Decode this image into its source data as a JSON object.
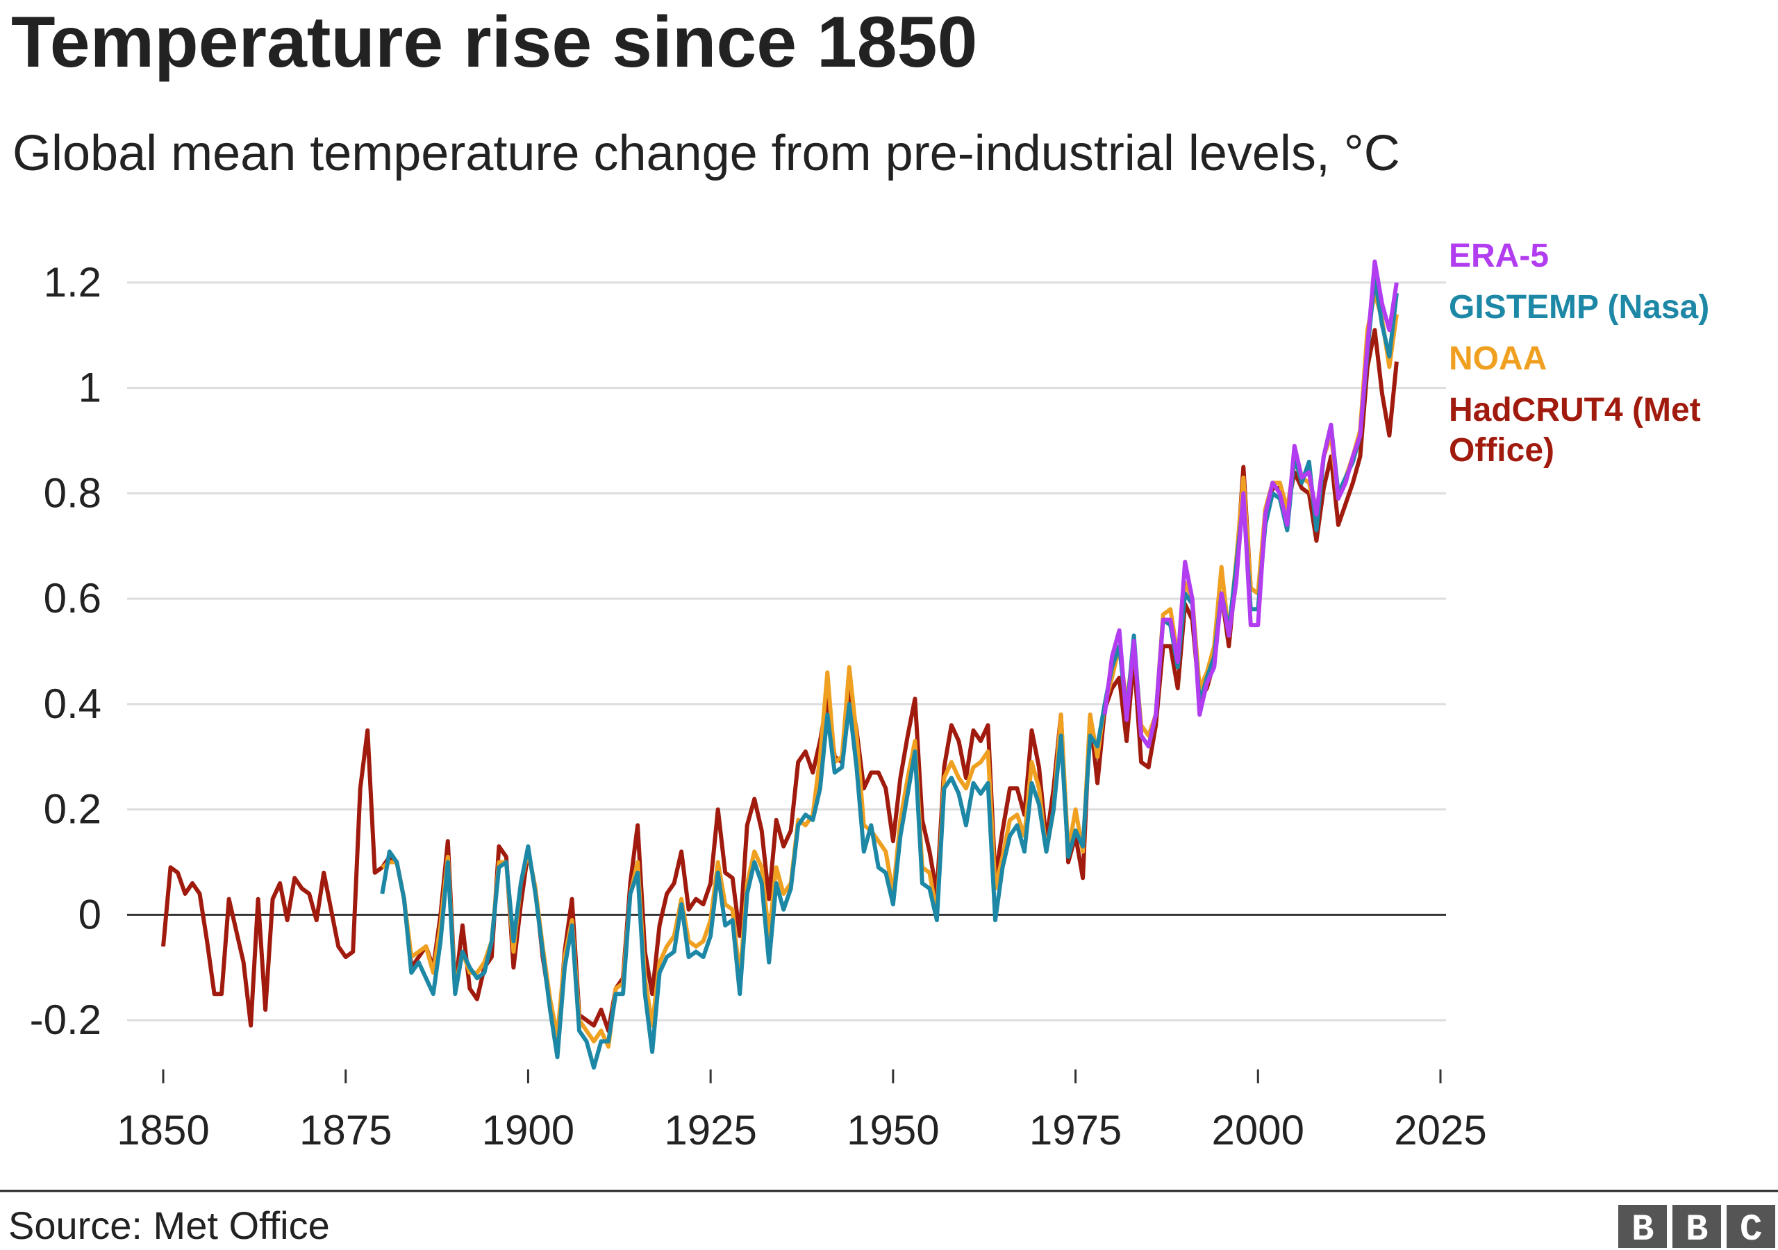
{
  "chart_data": {
    "type": "line",
    "title": "Temperature rise since 1850",
    "subtitle": "Global mean temperature change from pre-industrial levels, °C",
    "source": "Source: Met Office",
    "logo": "BBC",
    "legend": "right",
    "grid": true,
    "xlim": [
      1850,
      2025
    ],
    "xticks": [
      1850,
      1875,
      1900,
      1925,
      1950,
      1975,
      2000,
      2025
    ],
    "ylim": [
      -0.3,
      1.25
    ],
    "yticks": [
      -0.2,
      0,
      0.2,
      0.4,
      0.6,
      0.8,
      1,
      1.2
    ],
    "x": [
      1850,
      1851,
      1852,
      1853,
      1854,
      1855,
      1856,
      1857,
      1858,
      1859,
      1860,
      1861,
      1862,
      1863,
      1864,
      1865,
      1866,
      1867,
      1868,
      1869,
      1870,
      1871,
      1872,
      1873,
      1874,
      1875,
      1876,
      1877,
      1878,
      1879,
      1880,
      1881,
      1882,
      1883,
      1884,
      1885,
      1886,
      1887,
      1888,
      1889,
      1890,
      1891,
      1892,
      1893,
      1894,
      1895,
      1896,
      1897,
      1898,
      1899,
      1900,
      1901,
      1902,
      1903,
      1904,
      1905,
      1906,
      1907,
      1908,
      1909,
      1910,
      1911,
      1912,
      1913,
      1914,
      1915,
      1916,
      1917,
      1918,
      1919,
      1920,
      1921,
      1922,
      1923,
      1924,
      1925,
      1926,
      1927,
      1928,
      1929,
      1930,
      1931,
      1932,
      1933,
      1934,
      1935,
      1936,
      1937,
      1938,
      1939,
      1940,
      1941,
      1942,
      1943,
      1944,
      1945,
      1946,
      1947,
      1948,
      1949,
      1950,
      1951,
      1952,
      1953,
      1954,
      1955,
      1956,
      1957,
      1958,
      1959,
      1960,
      1961,
      1962,
      1963,
      1964,
      1965,
      1966,
      1967,
      1968,
      1969,
      1970,
      1971,
      1972,
      1973,
      1974,
      1975,
      1976,
      1977,
      1978,
      1979,
      1980,
      1981,
      1982,
      1983,
      1984,
      1985,
      1986,
      1987,
      1988,
      1989,
      1990,
      1991,
      1992,
      1993,
      1994,
      1995,
      1996,
      1997,
      1998,
      1999,
      2000,
      2001,
      2002,
      2003,
      2004,
      2005,
      2006,
      2007,
      2008,
      2009,
      2010,
      2011,
      2012,
      2013,
      2014,
      2015,
      2016,
      2017,
      2018,
      2019
    ],
    "series": [
      {
        "name": "ERA-5",
        "color": "#b23cf0",
        "values": [
          null,
          null,
          null,
          null,
          null,
          null,
          null,
          null,
          null,
          null,
          null,
          null,
          null,
          null,
          null,
          null,
          null,
          null,
          null,
          null,
          null,
          null,
          null,
          null,
          null,
          null,
          null,
          null,
          null,
          null,
          null,
          null,
          null,
          null,
          null,
          null,
          null,
          null,
          null,
          null,
          null,
          null,
          null,
          null,
          null,
          null,
          null,
          null,
          null,
          null,
          null,
          null,
          null,
          null,
          null,
          null,
          null,
          null,
          null,
          null,
          null,
          null,
          null,
          null,
          null,
          null,
          null,
          null,
          null,
          null,
          null,
          null,
          null,
          null,
          null,
          null,
          null,
          null,
          null,
          null,
          null,
          null,
          null,
          null,
          null,
          null,
          null,
          null,
          null,
          null,
          null,
          null,
          null,
          null,
          null,
          null,
          null,
          null,
          null,
          null,
          null,
          null,
          null,
          null,
          null,
          null,
          null,
          null,
          null,
          null,
          null,
          null,
          null,
          null,
          null,
          null,
          null,
          null,
          null,
          null,
          null,
          null,
          null,
          null,
          null,
          null,
          null,
          null,
          null,
          0.38,
          0.49,
          0.54,
          0.37,
          0.52,
          0.34,
          0.32,
          0.38,
          0.56,
          0.56,
          0.48,
          0.67,
          0.6,
          0.38,
          0.44,
          0.47,
          0.61,
          0.53,
          0.63,
          0.8,
          0.55,
          0.55,
          0.76,
          0.82,
          0.8,
          0.74,
          0.89,
          0.83,
          0.84,
          0.76,
          0.87,
          0.93,
          0.79,
          0.82,
          0.87,
          0.91,
          1.08,
          1.24,
          1.16,
          1.11,
          1.2
        ]
      },
      {
        "name": "GISTEMP (Nasa)",
        "color": "#1d87a6",
        "values": [
          null,
          null,
          null,
          null,
          null,
          null,
          null,
          null,
          null,
          null,
          null,
          null,
          null,
          null,
          null,
          null,
          null,
          null,
          null,
          null,
          null,
          null,
          null,
          null,
          null,
          null,
          null,
          null,
          null,
          null,
          0.04,
          0.12,
          0.1,
          0.03,
          -0.11,
          -0.09,
          -0.12,
          -0.15,
          -0.05,
          0.1,
          -0.15,
          -0.07,
          -0.1,
          -0.12,
          -0.11,
          -0.05,
          0.09,
          0.1,
          -0.05,
          0.06,
          0.13,
          0.04,
          -0.07,
          -0.18,
          -0.27,
          -0.1,
          -0.02,
          -0.22,
          -0.24,
          -0.29,
          -0.24,
          -0.24,
          -0.15,
          -0.15,
          0.04,
          0.08,
          -0.15,
          -0.26,
          -0.11,
          -0.08,
          -0.07,
          0.02,
          -0.08,
          -0.07,
          -0.08,
          -0.04,
          0.08,
          -0.02,
          -0.01,
          -0.15,
          0.04,
          0.1,
          0.06,
          -0.09,
          0.06,
          0.01,
          0.05,
          0.17,
          0.19,
          0.18,
          0.24,
          0.38,
          0.27,
          0.28,
          0.4,
          0.28,
          0.12,
          0.17,
          0.09,
          0.08,
          0.02,
          0.15,
          0.23,
          0.31,
          0.06,
          0.05,
          -0.01,
          0.24,
          0.26,
          0.23,
          0.17,
          0.25,
          0.23,
          0.25,
          -0.01,
          0.09,
          0.15,
          0.17,
          0.12,
          0.25,
          0.21,
          0.12,
          0.2,
          0.34,
          0.11,
          0.16,
          0.13,
          0.34,
          0.32,
          0.4,
          0.47,
          0.51,
          0.38,
          0.53,
          0.34,
          0.32,
          0.38,
          0.56,
          0.55,
          0.47,
          0.61,
          0.59,
          0.4,
          0.45,
          0.49,
          0.61,
          0.54,
          0.66,
          0.79,
          0.58,
          0.58,
          0.74,
          0.8,
          0.79,
          0.73,
          0.87,
          0.82,
          0.86,
          0.73,
          0.87,
          0.93,
          0.8,
          0.83,
          0.86,
          0.91,
          1.07,
          1.21,
          1.12,
          1.06,
          1.18
        ]
      },
      {
        "name": "NOAA",
        "color": "#f0a020",
        "values": [
          null,
          null,
          null,
          null,
          null,
          null,
          null,
          null,
          null,
          null,
          null,
          null,
          null,
          null,
          null,
          null,
          null,
          null,
          null,
          null,
          null,
          null,
          null,
          null,
          null,
          null,
          null,
          null,
          null,
          null,
          0.09,
          0.1,
          0.1,
          0.03,
          -0.08,
          -0.07,
          -0.06,
          -0.11,
          -0.02,
          0.11,
          -0.14,
          -0.07,
          -0.11,
          -0.11,
          -0.09,
          -0.05,
          0.1,
          0.1,
          -0.07,
          0.06,
          0.12,
          0.05,
          -0.06,
          -0.16,
          -0.23,
          -0.08,
          -0.01,
          -0.2,
          -0.22,
          -0.24,
          -0.22,
          -0.25,
          -0.14,
          -0.13,
          0.04,
          0.1,
          -0.12,
          -0.21,
          -0.09,
          -0.06,
          -0.04,
          0.03,
          -0.05,
          -0.06,
          -0.05,
          -0.01,
          0.1,
          0.02,
          0.01,
          -0.12,
          0.06,
          0.12,
          0.09,
          -0.04,
          0.09,
          0.04,
          0.06,
          0.18,
          0.17,
          0.19,
          0.3,
          0.46,
          0.29,
          0.3,
          0.47,
          0.34,
          0.17,
          0.16,
          0.14,
          0.12,
          0.04,
          0.18,
          0.26,
          0.33,
          0.09,
          0.08,
          0,
          0.26,
          0.29,
          0.26,
          0.24,
          0.28,
          0.29,
          0.31,
          0.05,
          0.11,
          0.18,
          0.19,
          0.15,
          0.29,
          0.24,
          0.12,
          0.2,
          0.38,
          0.12,
          0.2,
          0.12,
          0.38,
          0.3,
          0.4,
          0.45,
          0.51,
          0.4,
          0.51,
          0.36,
          0.34,
          0.38,
          0.57,
          0.58,
          0.49,
          0.63,
          0.6,
          0.43,
          0.46,
          0.51,
          0.66,
          0.53,
          0.67,
          0.83,
          0.62,
          0.61,
          0.77,
          0.82,
          0.82,
          0.77,
          0.86,
          0.83,
          0.82,
          0.76,
          0.87,
          0.91,
          0.79,
          0.83,
          0.87,
          0.92,
          1.11,
          1.18,
          1.13,
          1.04,
          1.14
        ]
      },
      {
        "name": "HadCRUT4 (Met Office)",
        "color": "#a01a0d",
        "values": [
          -0.06,
          0.09,
          0.08,
          0.04,
          0.06,
          0.04,
          -0.05,
          -0.15,
          -0.15,
          0.03,
          -0.03,
          -0.09,
          -0.21,
          0.03,
          -0.18,
          0.03,
          0.06,
          -0.01,
          0.07,
          0.05,
          0.04,
          -0.01,
          0.08,
          0.01,
          -0.06,
          -0.08,
          -0.07,
          0.24,
          0.35,
          0.08,
          0.09,
          0.11,
          0.1,
          0.03,
          -0.1,
          -0.08,
          -0.06,
          -0.1,
          0,
          0.14,
          -0.14,
          -0.02,
          -0.14,
          -0.16,
          -0.1,
          -0.08,
          0.13,
          0.11,
          -0.1,
          0.02,
          0.12,
          0.05,
          -0.08,
          -0.17,
          -0.25,
          -0.07,
          0.03,
          -0.19,
          -0.2,
          -0.21,
          -0.18,
          -0.22,
          -0.14,
          -0.12,
          0.06,
          0.17,
          -0.07,
          -0.15,
          -0.02,
          0.04,
          0.06,
          0.12,
          0.01,
          0.03,
          0.02,
          0.06,
          0.2,
          0.08,
          0.07,
          -0.04,
          0.17,
          0.22,
          0.16,
          0.03,
          0.18,
          0.13,
          0.16,
          0.29,
          0.31,
          0.27,
          0.33,
          0.41,
          0.3,
          0.29,
          0.43,
          0.35,
          0.24,
          0.27,
          0.27,
          0.24,
          0.14,
          0.26,
          0.34,
          0.41,
          0.18,
          0.12,
          0.04,
          0.28,
          0.36,
          0.33,
          0.26,
          0.35,
          0.33,
          0.36,
          0.07,
          0.16,
          0.24,
          0.24,
          0.19,
          0.35,
          0.28,
          0.14,
          0.24,
          0.38,
          0.1,
          0.15,
          0.07,
          0.38,
          0.25,
          0.39,
          0.43,
          0.45,
          0.33,
          0.49,
          0.29,
          0.28,
          0.36,
          0.51,
          0.51,
          0.43,
          0.59,
          0.56,
          0.41,
          0.43,
          0.48,
          0.61,
          0.51,
          0.65,
          0.85,
          0.62,
          0.61,
          0.76,
          0.81,
          0.81,
          0.77,
          0.84,
          0.81,
          0.8,
          0.71,
          0.81,
          0.87,
          0.74,
          0.78,
          0.82,
          0.87,
          1.04,
          1.11,
          0.99,
          0.91,
          1.05
        ]
      }
    ]
  }
}
